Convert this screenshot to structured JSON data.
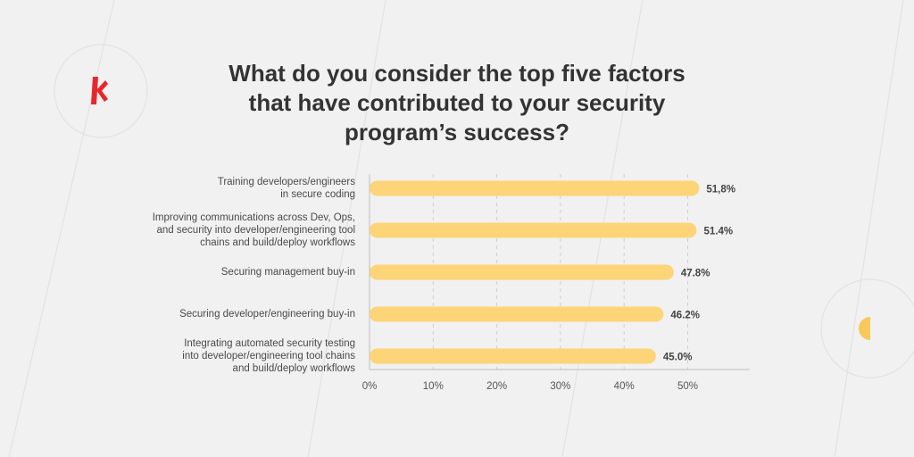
{
  "title_lines": [
    "What do you consider the top five factors",
    "that have contributed to your security",
    "program’s success?"
  ],
  "colors": {
    "background": "#f1f1f1",
    "bar": "#fdd477",
    "logo": "#e8262d",
    "accent_circle": "#f7c95a",
    "text": "#333333",
    "grid": "#cfcfcf",
    "deco_lines": "#e2e2e2"
  },
  "logo_icon": "red-bracket-logo-icon",
  "chart_data": {
    "type": "bar",
    "orientation": "horizontal",
    "title": "What do you consider the top five factors that have contributed to your security program’s success?",
    "categories": [
      [
        "Training developers/engineers",
        "in secure coding"
      ],
      [
        "Improving communications across Dev, Ops,",
        "and security into developer/engineering tool",
        "chains and build/deploy workflows"
      ],
      [
        "Securing management buy-in"
      ],
      [
        "Securing developer/engineering buy-in"
      ],
      [
        "Integrating automated security testing",
        "into developer/engineering tool chains",
        "and build/deploy workflows"
      ]
    ],
    "values": [
      51.8,
      51.4,
      47.8,
      46.2,
      45.0
    ],
    "value_labels": [
      "51,8%",
      "51.4%",
      "47.8%",
      "46.2%",
      "45.0%"
    ],
    "xticks": [
      "0%",
      "10%",
      "20%",
      "30%",
      "40%",
      "50%"
    ],
    "xtick_values": [
      0,
      10,
      20,
      30,
      40,
      50
    ],
    "xlim": [
      0,
      60
    ],
    "grid": "vertical dashed",
    "legend": "none"
  }
}
